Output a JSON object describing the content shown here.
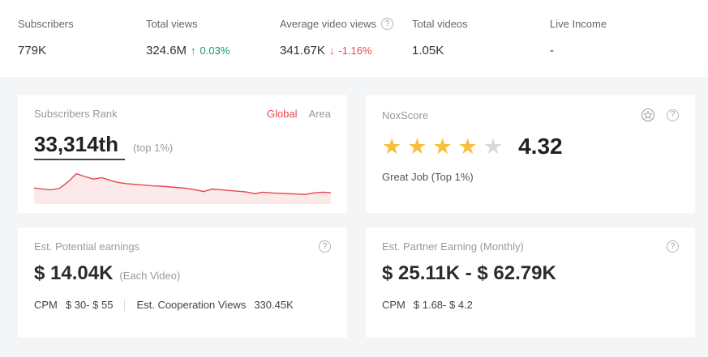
{
  "colors": {
    "accent_red": "#e8474e",
    "trend_green": "#16a05d",
    "star_yellow": "#f5c03e",
    "star_empty": "#d8d8d8",
    "area_bg": "#f4f5f6"
  },
  "icons": {
    "up_arrow": "↑",
    "down_arrow": "↓",
    "help": "?"
  },
  "stats": [
    {
      "label": "Subscribers",
      "value": "779K"
    },
    {
      "label": "Total views",
      "value": "324.6M",
      "delta": "0.03%",
      "trend": "up"
    },
    {
      "label": "Average video views",
      "value": "341.67K",
      "delta": "-1.16%",
      "trend": "down",
      "help": true
    },
    {
      "label": "Total videos",
      "value": "1.05K"
    },
    {
      "label": "Live Income",
      "value": "-"
    }
  ],
  "cards": {
    "subscribers_rank": {
      "title": "Subscribers Rank",
      "tab_global": "Global",
      "tab_area": "Area",
      "rank": "33,314th",
      "rank_note": "(top 1%)"
    },
    "nox_score": {
      "title": "NoxScore",
      "score": "4.32",
      "stars_filled": 4,
      "stars_total": 5,
      "note": "Great Job (Top 1%)"
    },
    "potential_earnings": {
      "title": "Est. Potential earnings",
      "value": "$ 14.04K",
      "value_note": "(Each Video)",
      "cpm_label": "CPM",
      "cpm_value": "$ 30- $ 55",
      "coop_label": "Est. Cooperation Views",
      "coop_value": "330.45K"
    },
    "partner_earning": {
      "title": "Est. Partner Earning (Monthly)",
      "value": "$ 25.11K - $ 62.79K",
      "cpm_label": "CPM",
      "cpm_value": "$ 1.68- $ 4.2"
    }
  },
  "chart_data": {
    "type": "area",
    "title": "Subscribers Rank trend (sparkline, axes unlabeled)",
    "values": [
      45,
      42,
      40,
      44,
      62,
      85,
      77,
      70,
      74,
      66,
      60,
      57,
      55,
      53,
      51,
      50,
      48,
      46,
      44,
      40,
      35,
      42,
      40,
      38,
      36,
      34,
      29,
      33,
      31,
      30,
      29,
      28,
      27,
      31,
      33,
      32
    ],
    "ylim": [
      0,
      100
    ],
    "grid": false,
    "legend": false,
    "line_color": "#e8474e",
    "fill_color": "rgba(232,71,78,0.12)"
  }
}
